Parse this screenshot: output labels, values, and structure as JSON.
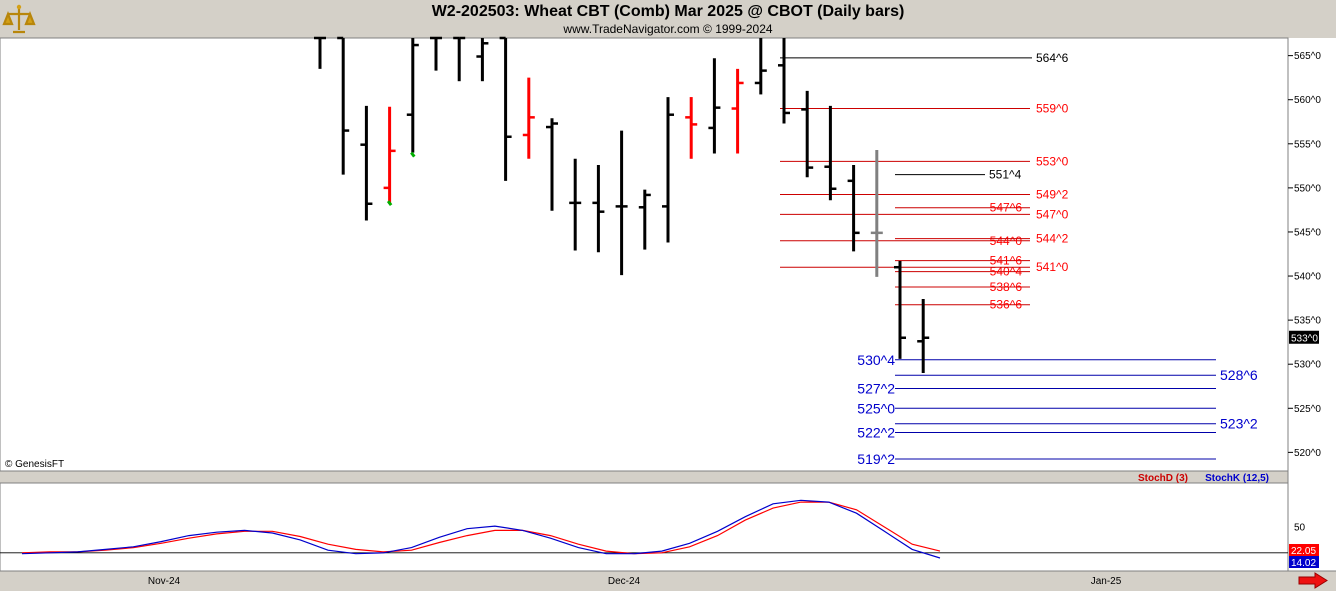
{
  "header": {
    "title": "W2-202503:  Wheat CBT (Comb) Mar 2025 @ CBOT  (Daily bars)",
    "subtitle": "www.TradeNavigator.com © 1999-2024"
  },
  "copyright": "© GenesisFT",
  "indicator_labels": {
    "stochd": "StochD (3)",
    "stochk": "StochK (12,5)"
  },
  "colors": {
    "up": "#ff0000",
    "down": "#000000",
    "blue": "#0000cc",
    "red": "#ff0000",
    "green": "#00b000",
    "grey": "#808080"
  },
  "chart_data": [
    {
      "type": "bar",
      "subtype": "ohlc",
      "ylim": [
        518,
        567
      ],
      "yticks": [
        "565^0",
        "560^0",
        "555^0",
        "550^0",
        "545^0",
        "540^0",
        "535^0",
        "530^0",
        "525^0",
        "520^0"
      ],
      "ytick_values": [
        565,
        560,
        555,
        550,
        545,
        540,
        535,
        530,
        525,
        520
      ],
      "last_price_label": "533^0",
      "last_price": 533,
      "xtick_labels": [
        "Nov-24",
        "Dec-24",
        "Jan-25"
      ],
      "bars": [
        {
          "high": 567.0,
          "low": 563.5,
          "open": 567.0,
          "close": 567.0,
          "color": "black"
        },
        {
          "high": 567.0,
          "low": 551.5,
          "open": 567.0,
          "close": 556.5,
          "color": "black"
        },
        {
          "high": 559.3,
          "low": 546.3,
          "open": 554.9,
          "close": 548.2,
          "color": "black"
        },
        {
          "high": 559.2,
          "low": 548.2,
          "open": 550.0,
          "close": 554.2,
          "color": "red",
          "mark": 548.5
        },
        {
          "high": 567.0,
          "low": 554.0,
          "open": 558.3,
          "close": 566.2,
          "color": "black",
          "mark": 554.0
        },
        {
          "high": 567.0,
          "low": 563.3,
          "open": 567.0,
          "close": 567.0,
          "color": "black"
        },
        {
          "high": 567.0,
          "low": 562.1,
          "open": 567.0,
          "close": 567.0,
          "color": "black"
        },
        {
          "high": 567.0,
          "low": 562.1,
          "open": 564.9,
          "close": 566.4,
          "color": "black"
        },
        {
          "high": 567.0,
          "low": 550.8,
          "open": 567.0,
          "close": 555.8,
          "color": "black"
        },
        {
          "high": 562.5,
          "low": 553.3,
          "open": 556.0,
          "close": 558.0,
          "color": "red"
        },
        {
          "high": 557.9,
          "low": 547.4,
          "open": 556.9,
          "close": 557.3,
          "color": "black"
        },
        {
          "high": 553.3,
          "low": 542.9,
          "open": 548.3,
          "close": 548.3,
          "color": "black"
        },
        {
          "high": 552.6,
          "low": 542.7,
          "open": 548.3,
          "close": 547.3,
          "color": "black"
        },
        {
          "high": 556.5,
          "low": 540.1,
          "open": 547.9,
          "close": 547.9,
          "color": "black"
        },
        {
          "high": 549.8,
          "low": 543.0,
          "open": 547.8,
          "close": 549.2,
          "color": "black"
        },
        {
          "high": 560.3,
          "low": 543.8,
          "open": 547.9,
          "close": 558.3,
          "color": "black"
        },
        {
          "high": 560.3,
          "low": 553.3,
          "open": 558.0,
          "close": 557.2,
          "color": "red"
        },
        {
          "high": 564.7,
          "low": 553.9,
          "open": 556.8,
          "close": 559.1,
          "color": "black"
        },
        {
          "high": 563.5,
          "low": 553.9,
          "open": 559.0,
          "close": 561.9,
          "color": "red"
        },
        {
          "high": 567.0,
          "low": 560.6,
          "open": 561.9,
          "close": 563.3,
          "color": "black"
        },
        {
          "high": 567.0,
          "low": 557.3,
          "open": 563.9,
          "close": 558.5,
          "color": "black"
        },
        {
          "high": 561.0,
          "low": 551.2,
          "open": 558.9,
          "close": 552.3,
          "color": "black"
        },
        {
          "high": 559.3,
          "low": 548.6,
          "open": 552.4,
          "close": 549.9,
          "color": "black"
        },
        {
          "high": 552.6,
          "low": 542.8,
          "open": 550.8,
          "close": 544.9,
          "color": "black"
        },
        {
          "high": 554.3,
          "low": 539.9,
          "open": 544.9,
          "close": 544.9,
          "color": "grey"
        },
        {
          "high": 541.7,
          "low": 530.6,
          "open": 541.0,
          "close": 533.0,
          "color": "black"
        },
        {
          "high": 537.4,
          "low": 529.0,
          "open": 532.6,
          "close": 533.0,
          "color": "black"
        }
      ],
      "levels_black": [
        {
          "label": "564^6",
          "value": 564.75
        },
        {
          "label": "551^4",
          "value": 551.5
        }
      ],
      "levels_red": [
        {
          "label": "559^0",
          "value": 559.0
        },
        {
          "label": "553^0",
          "value": 553.0
        },
        {
          "label": "549^2",
          "value": 549.25
        },
        {
          "label": "547^6",
          "value": 547.75
        },
        {
          "label": "547^0",
          "value": 547.0
        },
        {
          "label": "544^0",
          "value": 544.0
        },
        {
          "label": "544^2",
          "value": 544.25
        },
        {
          "label": "541^6",
          "value": 541.75
        },
        {
          "label": "540^4",
          "value": 540.5
        },
        {
          "label": "541^0",
          "value": 541.0
        },
        {
          "label": "538^6",
          "value": 538.75
        },
        {
          "label": "536^6",
          "value": 536.75
        }
      ],
      "levels_blue": [
        {
          "label": "530^4",
          "value": 530.5
        },
        {
          "label": "528^6",
          "value": 528.75
        },
        {
          "label": "527^2",
          "value": 527.25
        },
        {
          "label": "525^0",
          "value": 525.0
        },
        {
          "label": "523^2",
          "value": 523.25
        },
        {
          "label": "522^2",
          "value": 522.25
        },
        {
          "label": "519^2",
          "value": 519.25
        }
      ]
    },
    {
      "type": "line",
      "ylim": [
        0,
        100
      ],
      "yticks": [
        50
      ],
      "series": [
        {
          "name": "StochD (3)",
          "color": "#ff0000",
          "last_label": "22.05",
          "values": [
            20,
            21,
            21,
            23,
            26,
            31,
            37,
            42,
            45,
            45,
            39,
            30,
            24,
            21,
            23,
            32,
            40,
            46,
            46,
            40,
            30,
            22,
            19,
            20,
            27,
            40,
            58,
            72,
            79,
            79,
            70,
            50,
            30,
            22
          ]
        },
        {
          "name": "StochK (12,5)",
          "color": "#0000cc",
          "last_label": "14.02",
          "values": [
            19,
            20,
            21,
            24,
            27,
            33,
            40,
            44,
            46,
            43,
            35,
            23,
            19,
            20,
            26,
            38,
            48,
            51,
            46,
            37,
            26,
            19,
            19,
            22,
            31,
            45,
            62,
            77,
            81,
            79,
            66,
            45,
            24,
            14
          ]
        }
      ]
    }
  ]
}
